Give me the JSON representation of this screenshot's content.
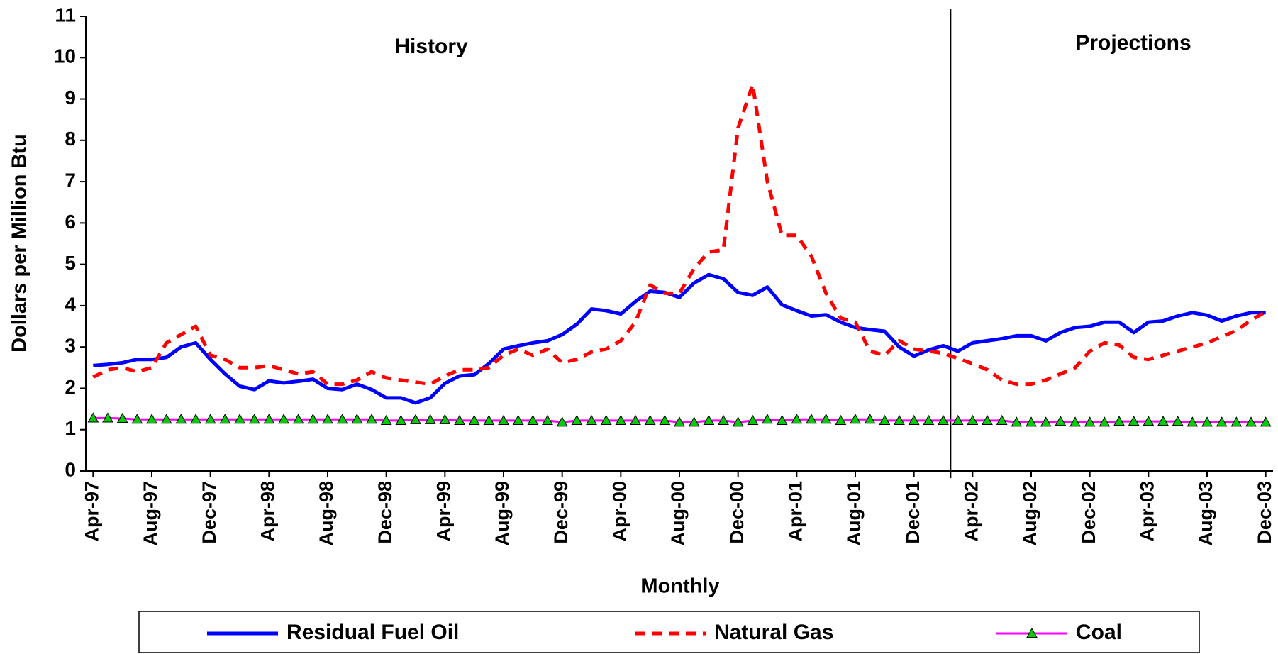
{
  "chart_data": {
    "type": "line",
    "y_label": "Dollars per Million Btu",
    "x_label": "Monthly",
    "annotations": [
      "History",
      "Projections"
    ],
    "categories": [
      "Apr-97",
      null,
      null,
      null,
      "Aug-97",
      null,
      null,
      null,
      "Dec-97",
      null,
      null,
      null,
      "Apr-98",
      null,
      null,
      null,
      "Aug-98",
      null,
      null,
      null,
      "Dec-98",
      null,
      null,
      null,
      "Apr-99",
      null,
      null,
      null,
      "Aug-99",
      null,
      null,
      null,
      "Dec-99",
      null,
      null,
      null,
      "Apr-00",
      null,
      null,
      null,
      "Aug-00",
      null,
      null,
      null,
      "Dec-00",
      null,
      null,
      null,
      "Apr-01",
      null,
      null,
      null,
      "Aug-01",
      null,
      null,
      null,
      "Dec-01",
      null,
      null,
      null,
      "Apr-02",
      null,
      null,
      null,
      "Aug-02",
      null,
      null,
      null,
      "Dec-02",
      null,
      null,
      null,
      "Apr-03",
      null,
      null,
      null,
      "Aug-03",
      null,
      null,
      null,
      "Dec-03"
    ],
    "series": [
      {
        "name": "Residual Fuel Oil",
        "color": "#0000ff",
        "line_style": "solid",
        "values": [
          2.55,
          2.58,
          2.62,
          2.7,
          2.7,
          2.75,
          3.0,
          3.1,
          2.7,
          2.35,
          2.05,
          1.97,
          2.18,
          2.13,
          2.17,
          2.22,
          2.0,
          1.97,
          2.1,
          1.97,
          1.77,
          1.77,
          1.65,
          1.77,
          2.12,
          2.3,
          2.33,
          2.6,
          2.95,
          3.03,
          3.1,
          3.15,
          3.3,
          3.55,
          3.92,
          3.88,
          3.8,
          4.1,
          4.35,
          4.32,
          4.2,
          4.55,
          4.75,
          4.65,
          4.32,
          4.25,
          4.45,
          4.02,
          3.88,
          3.75,
          3.78,
          3.6,
          3.47,
          3.42,
          3.38,
          3.0,
          2.78,
          2.93,
          3.03,
          2.9,
          3.1,
          3.15,
          3.2,
          3.27,
          3.27,
          3.15,
          3.35,
          3.47,
          3.5,
          3.6,
          3.6,
          3.35,
          3.6,
          3.63,
          3.75,
          3.83,
          3.77,
          3.63,
          3.75,
          3.83,
          3.83
        ]
      },
      {
        "name": "Natural Gas",
        "color": "#ff0000",
        "line_style": "dashed",
        "values": [
          2.27,
          2.45,
          2.5,
          2.4,
          2.5,
          3.1,
          3.3,
          3.5,
          2.8,
          2.7,
          2.5,
          2.5,
          2.55,
          2.45,
          2.35,
          2.4,
          2.1,
          2.1,
          2.2,
          2.4,
          2.25,
          2.2,
          2.15,
          2.1,
          2.3,
          2.45,
          2.45,
          2.5,
          2.8,
          2.95,
          2.8,
          2.95,
          2.62,
          2.7,
          2.88,
          2.95,
          3.15,
          3.6,
          4.5,
          4.3,
          4.3,
          4.9,
          5.3,
          5.35,
          8.3,
          9.35,
          7.0,
          5.7,
          5.7,
          5.2,
          4.3,
          3.7,
          3.6,
          2.9,
          2.8,
          3.15,
          2.95,
          2.9,
          2.85,
          2.72,
          2.6,
          2.45,
          2.2,
          2.1,
          2.1,
          2.2,
          2.35,
          2.5,
          2.9,
          3.1,
          3.05,
          2.75,
          2.7,
          2.8,
          2.9,
          3.0,
          3.1,
          3.25,
          3.4,
          3.65,
          3.85
        ]
      },
      {
        "name": "Coal",
        "color": "#ff00ff",
        "line_style": "solid",
        "marker": "triangle",
        "marker_color": "#00cc00",
        "values": [
          1.28,
          1.28,
          1.27,
          1.25,
          1.25,
          1.25,
          1.25,
          1.25,
          1.25,
          1.25,
          1.25,
          1.25,
          1.25,
          1.25,
          1.25,
          1.25,
          1.25,
          1.25,
          1.25,
          1.25,
          1.22,
          1.22,
          1.24,
          1.24,
          1.24,
          1.22,
          1.22,
          1.22,
          1.22,
          1.22,
          1.22,
          1.22,
          1.18,
          1.22,
          1.22,
          1.22,
          1.22,
          1.22,
          1.22,
          1.22,
          1.18,
          1.18,
          1.22,
          1.22,
          1.18,
          1.22,
          1.25,
          1.22,
          1.25,
          1.25,
          1.25,
          1.22,
          1.25,
          1.25,
          1.22,
          1.22,
          1.22,
          1.22,
          1.22,
          1.22,
          1.22,
          1.22,
          1.22,
          1.18,
          1.18,
          1.18,
          1.2,
          1.18,
          1.18,
          1.18,
          1.2,
          1.2,
          1.2,
          1.2,
          1.2,
          1.18,
          1.18,
          1.18,
          1.18,
          1.18,
          1.18
        ]
      }
    ],
    "ylim": [
      0,
      11
    ],
    "yticks": [
      0,
      1,
      2,
      3,
      4,
      5,
      6,
      7,
      8,
      9,
      10,
      11
    ],
    "grid": false
  }
}
